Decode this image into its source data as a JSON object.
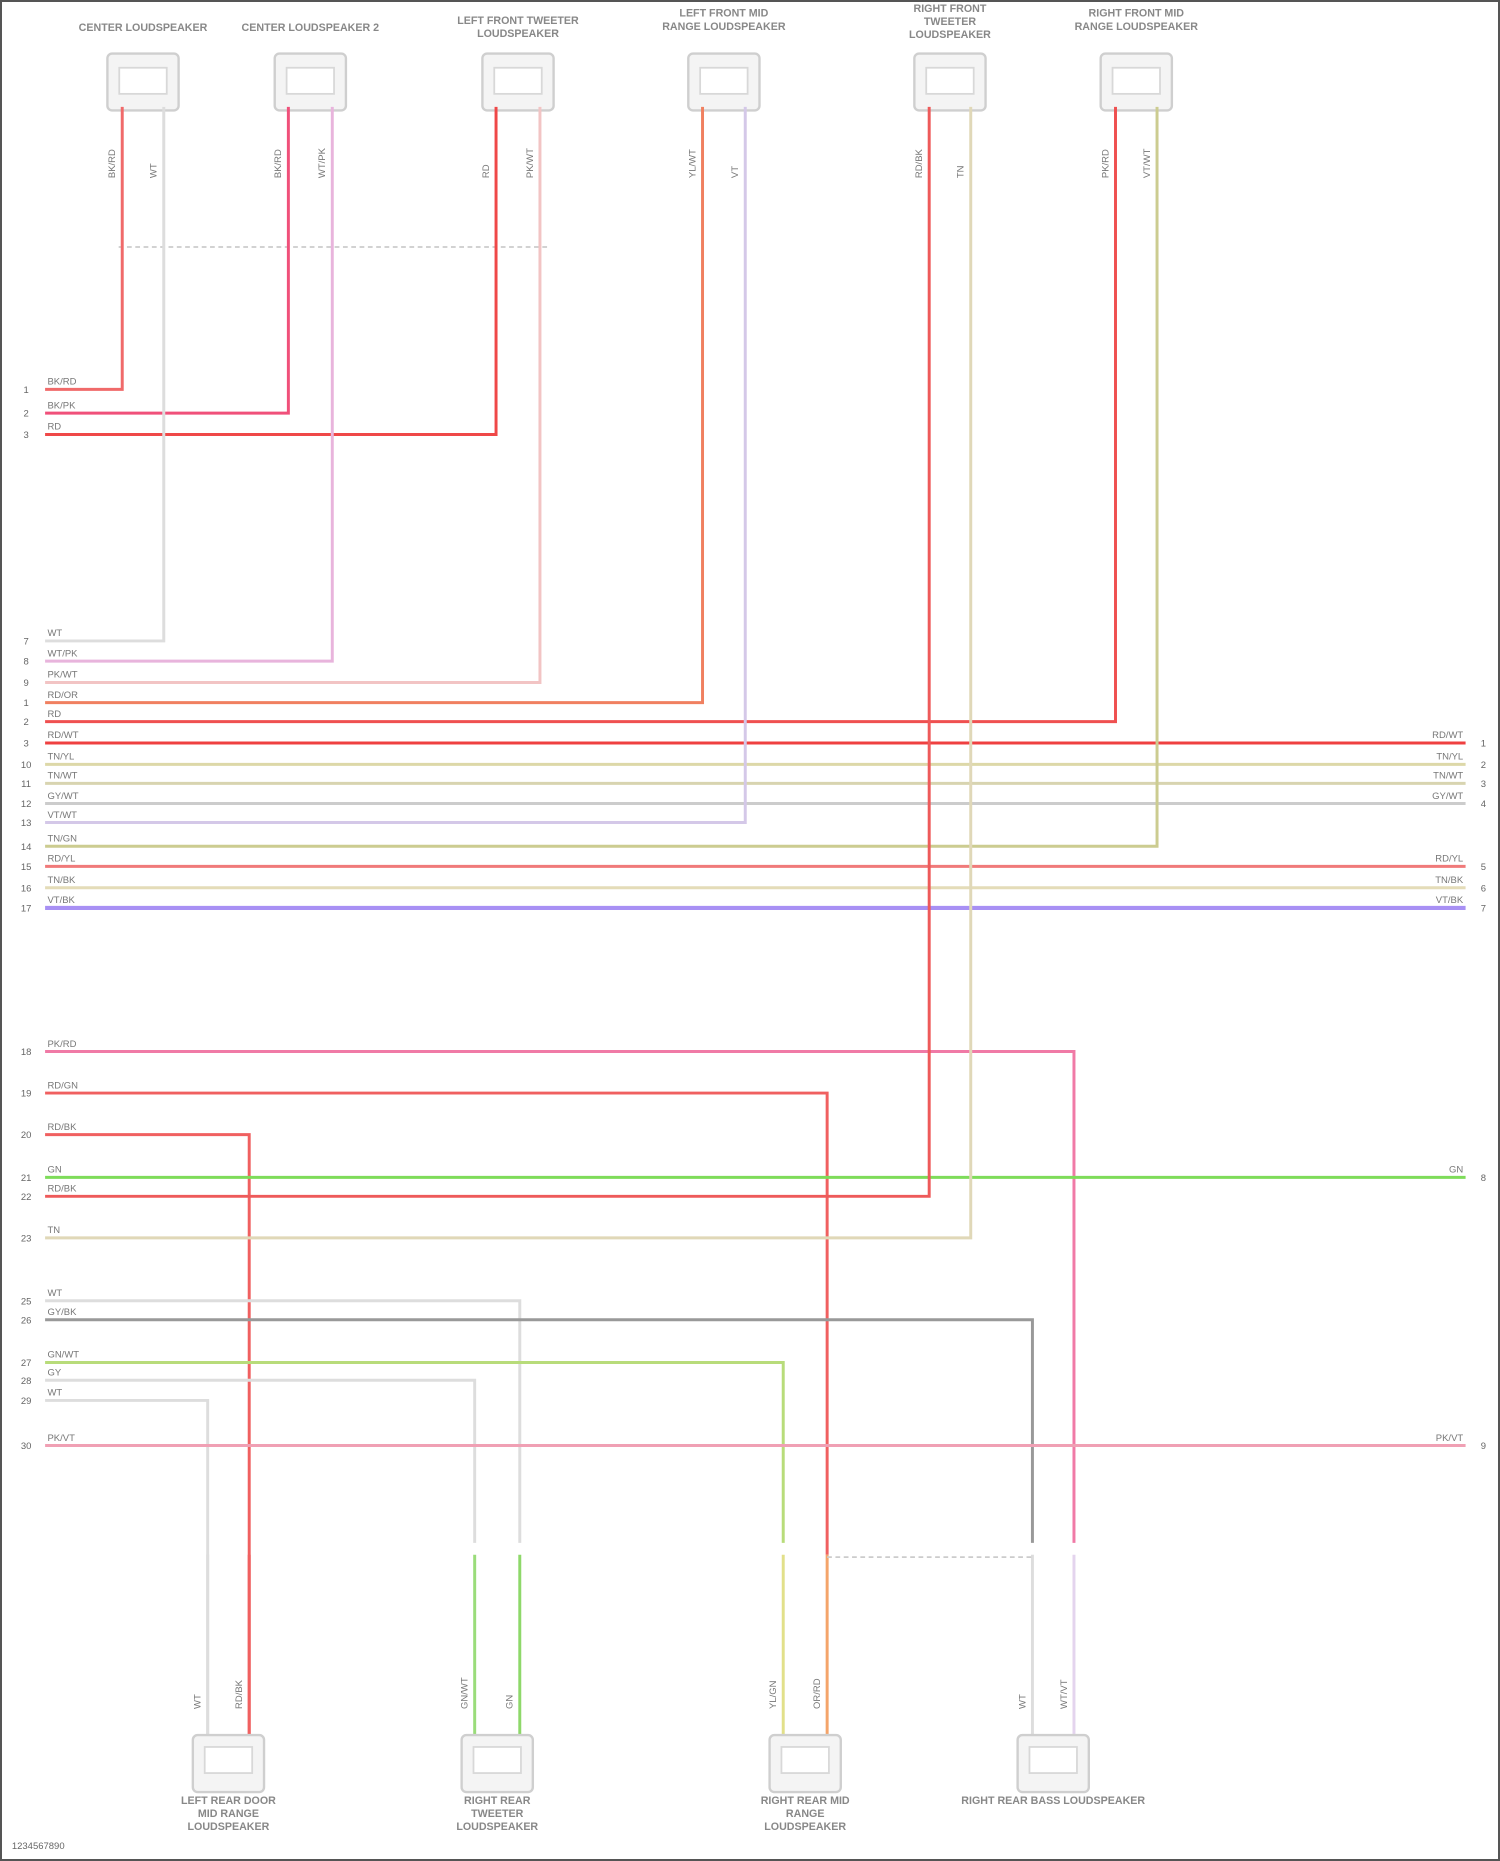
{
  "diagram": {
    "footer_id": "1234567890",
    "top_connectors": [
      {
        "label": "CENTER LOUDSPEAKER",
        "wires": [
          {
            "code": "BK/RD",
            "color": "#f06a6a"
          },
          {
            "code": "WT",
            "color": "#dddddd"
          }
        ]
      },
      {
        "label": "CENTER LOUDSPEAKER 2",
        "wires": [
          {
            "code": "BK/RD",
            "color": "#f0507a"
          },
          {
            "code": "WT/PK",
            "color": "#e8b4dc"
          }
        ]
      },
      {
        "label": "LEFT FRONT TWEETER LOUDSPEAKER",
        "wires": [
          {
            "code": "RD",
            "color": "#ef4848"
          },
          {
            "code": "PK/WT",
            "color": "#f2c4c4"
          }
        ]
      },
      {
        "label": "LEFT FRONT MID RANGE LOUDSPEAKER",
        "wires": [
          {
            "code": "YL/WT",
            "color": "#eeeeb0"
          },
          {
            "code": "VT",
            "color": "#c8b4f4"
          }
        ]
      },
      {
        "label": "RIGHT FRONT TWEETER LOUDSPEAKER",
        "wires": [
          {
            "code": "RD/BK",
            "color": "#ee5a5a"
          },
          {
            "code": "TN",
            "color": "#e0d8b8"
          }
        ]
      },
      {
        "label": "RIGHT FRONT MID RANGE LOUDSPEAKER",
        "wires": [
          {
            "code": "PK/RD",
            "color": "#f07aa6"
          },
          {
            "code": "VT/WT",
            "color": "#c89af0"
          }
        ]
      }
    ],
    "bottom_connectors": [
      {
        "label": "LEFT REAR DOOR MID RANGE LOUDSPEAKER",
        "wires": [
          {
            "code": "WT",
            "color": "#dddddd"
          },
          {
            "code": "RD/BK",
            "color": "#f06060"
          }
        ]
      },
      {
        "label": "RIGHT REAR TWEETER LOUDSPEAKER",
        "wires": [
          {
            "code": "GN/WT",
            "color": "#9adc7a"
          },
          {
            "code": "GN",
            "color": "#8ed86a"
          }
        ]
      },
      {
        "label": "RIGHT REAR MID RANGE LOUDSPEAKER",
        "wires": [
          {
            "code": "YL/GN",
            "color": "#e2e08a"
          },
          {
            "code": "OR/RD",
            "color": "#f4a46a"
          }
        ]
      },
      {
        "label": "RIGHT REAR BASS LOUDSPEAKER",
        "wires": [
          {
            "code": "WT",
            "color": "#dddddd"
          },
          {
            "code": "WT/VT",
            "color": "#e4d4ee"
          }
        ]
      }
    ],
    "left_terminals": [
      {
        "pin": "1",
        "code": "BK/RD",
        "color": "#f06a6a"
      },
      {
        "pin": "2",
        "code": "BK/PK",
        "color": "#f0507a"
      },
      {
        "pin": "3",
        "code": "RD",
        "color": "#ef4848"
      },
      {
        "pin": "7",
        "code": "WT",
        "color": "#dddddd"
      },
      {
        "pin": "8",
        "code": "WT/PK",
        "color": "#e8b4dc"
      },
      {
        "pin": "9",
        "code": "PK/WT",
        "color": "#f2c4c4"
      },
      {
        "pin": "1",
        "code": "RD/OR",
        "color": "#f08060"
      },
      {
        "pin": "2",
        "code": "RD",
        "color": "#ef5050"
      },
      {
        "pin": "3",
        "code": "RD/WT",
        "color": "#ef4040"
      },
      {
        "pin": "10",
        "code": "TN/YL",
        "color": "#ddd8a8"
      },
      {
        "pin": "11",
        "code": "TN/WT",
        "color": "#d8d4b0"
      },
      {
        "pin": "12",
        "code": "GY/WT",
        "color": "#cccccc"
      },
      {
        "pin": "13",
        "code": "VT/WT",
        "color": "#d4c8e8"
      },
      {
        "pin": "14",
        "code": "TN/GN",
        "color": "#cccc90"
      },
      {
        "pin": "15",
        "code": "RD/YL",
        "color": "#f07a7a"
      },
      {
        "pin": "16",
        "code": "TN/BK",
        "color": "#e4dcb8"
      },
      {
        "pin": "17",
        "code": "VT/BK",
        "color": "#a890f4"
      },
      {
        "pin": "18",
        "code": "PK/RD",
        "color": "#f07aa6"
      },
      {
        "pin": "19",
        "code": "RD/GN",
        "color": "#f06060"
      },
      {
        "pin": "20",
        "code": "RD/BK",
        "color": "#f06060"
      },
      {
        "pin": "21",
        "code": "GN",
        "color": "#7edc5a"
      },
      {
        "pin": "22",
        "code": "RD/BK",
        "color": "#ee5a5a"
      },
      {
        "pin": "23",
        "code": "TN",
        "color": "#e0d8b8"
      },
      {
        "pin": "25",
        "code": "WT",
        "color": "#dddddd"
      },
      {
        "pin": "26",
        "code": "GY/BK",
        "color": "#999999"
      },
      {
        "pin": "27",
        "code": "GN/WT",
        "color": "#b8dc7a"
      },
      {
        "pin": "28",
        "code": "GY",
        "color": "#dddddd"
      },
      {
        "pin": "29",
        "code": "WT",
        "color": "#dddddd"
      },
      {
        "pin": "30",
        "code": "PK/VT",
        "color": "#f0a0b4"
      }
    ],
    "right_terminals": [
      {
        "pin": "1",
        "code": "RD/WT"
      },
      {
        "pin": "2",
        "code": "TN/YL"
      },
      {
        "pin": "3",
        "code": "TN/WT"
      },
      {
        "pin": "4",
        "code": "GY/WT"
      },
      {
        "pin": "5",
        "code": "RD/YL"
      },
      {
        "pin": "6",
        "code": "TN/BK"
      },
      {
        "pin": "7",
        "code": "VT/BK"
      },
      {
        "pin": "8",
        "code": "GN"
      },
      {
        "pin": "9",
        "code": "PK/VT"
      }
    ]
  }
}
